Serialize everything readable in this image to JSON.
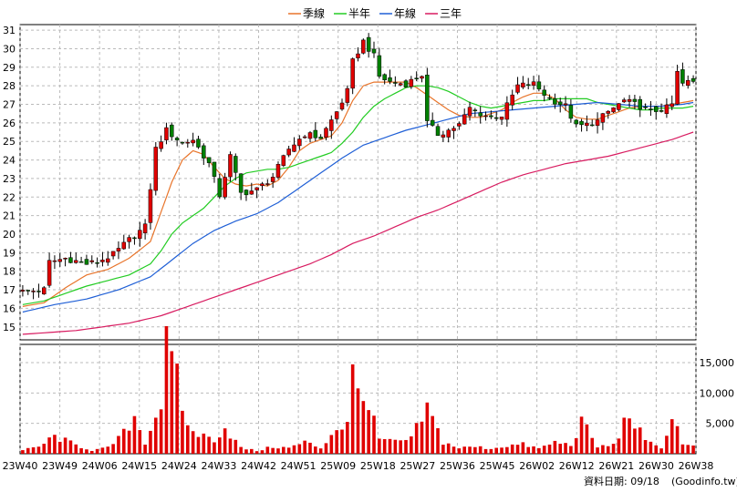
{
  "chart_data": {
    "type": "candlestick",
    "legend": [
      {
        "label": "季線",
        "color": "#e8742a"
      },
      {
        "label": "半年",
        "color": "#22cc22"
      },
      {
        "label": "年線",
        "color": "#1f5fd6"
      },
      {
        "label": "三年",
        "color": "#d81b60"
      }
    ],
    "price_axis": {
      "min": 14.3,
      "max": 31.3,
      "ticks": [
        15,
        16,
        17,
        18,
        19,
        20,
        21,
        22,
        23,
        24,
        25,
        26,
        27,
        28,
        29,
        30,
        31
      ]
    },
    "volume_axis": {
      "max": 18000,
      "ticks": [
        5000,
        10000,
        15000
      ],
      "tick_labels": [
        "5,000",
        "10,000",
        "15,000"
      ]
    },
    "x_labels": [
      "23W40",
      "23W49",
      "24W06",
      "24W15",
      "24W24",
      "24W33",
      "24W42",
      "24W51",
      "25W09",
      "25W18",
      "25W27",
      "25W36",
      "25W45",
      "26W02",
      "26W12",
      "26W21",
      "26W30",
      "26W38"
    ],
    "close_keypoints": [
      [
        0,
        16.9
      ],
      [
        4,
        17.0
      ],
      [
        5,
        18.5
      ],
      [
        8,
        18.7
      ],
      [
        12,
        18.4
      ],
      [
        14,
        18.5
      ],
      [
        17,
        18.9
      ],
      [
        20,
        19.7
      ],
      [
        23,
        20.4
      ],
      [
        25,
        24.6
      ],
      [
        27,
        25.6
      ],
      [
        30,
        24.9
      ],
      [
        32,
        25.1
      ],
      [
        35,
        23.8
      ],
      [
        37,
        22.1
      ],
      [
        39,
        24.2
      ],
      [
        41,
        22.2
      ],
      [
        44,
        22.4
      ],
      [
        47,
        23.1
      ],
      [
        50,
        24.6
      ],
      [
        53,
        25.4
      ],
      [
        56,
        25.2
      ],
      [
        59,
        26.6
      ],
      [
        61,
        27.7
      ],
      [
        62,
        29.3
      ],
      [
        64,
        30.4
      ],
      [
        66,
        29.6
      ],
      [
        67,
        28.5
      ],
      [
        69,
        28.2
      ],
      [
        72,
        28.1
      ],
      [
        75,
        28.6
      ],
      [
        76,
        26.0
      ],
      [
        78,
        25.4
      ],
      [
        80,
        25.6
      ],
      [
        82,
        25.9
      ],
      [
        84,
        26.8
      ],
      [
        86,
        26.5
      ],
      [
        88,
        26.3
      ],
      [
        90,
        26.4
      ],
      [
        93,
        28.0
      ],
      [
        96,
        28.1
      ],
      [
        99,
        27.3
      ],
      [
        102,
        26.9
      ],
      [
        104,
        25.8
      ],
      [
        106,
        25.9
      ],
      [
        108,
        26.1
      ],
      [
        110,
        26.6
      ],
      [
        113,
        27.2
      ],
      [
        116,
        26.9
      ],
      [
        118,
        26.6
      ],
      [
        121,
        26.8
      ],
      [
        122,
        27.0
      ],
      [
        123,
        28.7
      ],
      [
        124,
        28.1
      ],
      [
        125,
        28.2
      ],
      [
        126,
        28.2
      ]
    ],
    "volume_keypoints": [
      [
        0,
        600
      ],
      [
        3,
        1200
      ],
      [
        6,
        3000
      ],
      [
        10,
        1500
      ],
      [
        13,
        600
      ],
      [
        16,
        1000
      ],
      [
        19,
        3500
      ],
      [
        21,
        6500
      ],
      [
        23,
        2000
      ],
      [
        26,
        9000
      ],
      [
        27,
        18000
      ],
      [
        28,
        15500
      ],
      [
        29,
        12500
      ],
      [
        31,
        4500
      ],
      [
        34,
        3000
      ],
      [
        36,
        2500
      ],
      [
        38,
        4500
      ],
      [
        41,
        1000
      ],
      [
        44,
        500
      ],
      [
        47,
        1200
      ],
      [
        50,
        1000
      ],
      [
        53,
        2000
      ],
      [
        56,
        1000
      ],
      [
        59,
        4500
      ],
      [
        61,
        5000
      ],
      [
        62,
        13500
      ],
      [
        63,
        11000
      ],
      [
        64,
        12000
      ],
      [
        65,
        8000
      ],
      [
        67,
        2500
      ],
      [
        70,
        2000
      ],
      [
        73,
        2500
      ],
      [
        76,
        7800
      ],
      [
        79,
        2000
      ],
      [
        82,
        1000
      ],
      [
        85,
        1200
      ],
      [
        88,
        900
      ],
      [
        91,
        1400
      ],
      [
        94,
        1600
      ],
      [
        97,
        900
      ],
      [
        100,
        2000
      ],
      [
        103,
        1500
      ],
      [
        105,
        5500
      ],
      [
        108,
        1200
      ],
      [
        111,
        1500
      ],
      [
        114,
        7000
      ],
      [
        117,
        2000
      ],
      [
        120,
        1200
      ],
      [
        122,
        5500
      ],
      [
        123,
        5800
      ],
      [
        124,
        1500
      ],
      [
        126,
        1200
      ]
    ],
    "ma_keypoints": {
      "q": [
        [
          0,
          16.1
        ],
        [
          4,
          16.3
        ],
        [
          8,
          17.1
        ],
        [
          12,
          17.8
        ],
        [
          16,
          18.1
        ],
        [
          20,
          18.7
        ],
        [
          24,
          19.6
        ],
        [
          26,
          21.2
        ],
        [
          28,
          22.8
        ],
        [
          30,
          24.0
        ],
        [
          32,
          24.5
        ],
        [
          34,
          24.3
        ],
        [
          36,
          23.6
        ],
        [
          38,
          23.0
        ],
        [
          40,
          22.7
        ],
        [
          42,
          22.6
        ],
        [
          44,
          22.7
        ],
        [
          46,
          22.6
        ],
        [
          48,
          22.9
        ],
        [
          50,
          23.6
        ],
        [
          52,
          24.5
        ],
        [
          54,
          24.9
        ],
        [
          56,
          25.1
        ],
        [
          58,
          25.3
        ],
        [
          60,
          26.0
        ],
        [
          62,
          27.2
        ],
        [
          64,
          28.0
        ],
        [
          66,
          28.2
        ],
        [
          68,
          28.2
        ],
        [
          70,
          28.2
        ],
        [
          72,
          28.2
        ],
        [
          74,
          27.9
        ],
        [
          76,
          27.5
        ],
        [
          78,
          27.1
        ],
        [
          80,
          26.7
        ],
        [
          82,
          26.4
        ],
        [
          84,
          26.3
        ],
        [
          86,
          26.3
        ],
        [
          88,
          26.5
        ],
        [
          90,
          26.7
        ],
        [
          92,
          27.1
        ],
        [
          94,
          27.4
        ],
        [
          96,
          27.6
        ],
        [
          98,
          27.6
        ],
        [
          100,
          27.3
        ],
        [
          102,
          26.7
        ],
        [
          104,
          26.3
        ],
        [
          106,
          26.2
        ],
        [
          108,
          26.2
        ],
        [
          110,
          26.4
        ],
        [
          112,
          26.6
        ],
        [
          114,
          26.8
        ],
        [
          116,
          26.9
        ],
        [
          118,
          26.9
        ],
        [
          120,
          26.9
        ],
        [
          122,
          27.0
        ],
        [
          124,
          27.1
        ],
        [
          126,
          27.2
        ]
      ],
      "h": [
        [
          0,
          16.2
        ],
        [
          4,
          16.4
        ],
        [
          8,
          16.8
        ],
        [
          12,
          17.2
        ],
        [
          16,
          17.5
        ],
        [
          20,
          17.8
        ],
        [
          24,
          18.4
        ],
        [
          26,
          19.1
        ],
        [
          28,
          20.0
        ],
        [
          30,
          20.6
        ],
        [
          32,
          21.0
        ],
        [
          34,
          21.4
        ],
        [
          36,
          22.0
        ],
        [
          38,
          22.6
        ],
        [
          40,
          23.0
        ],
        [
          42,
          23.3
        ],
        [
          44,
          23.4
        ],
        [
          46,
          23.5
        ],
        [
          48,
          23.5
        ],
        [
          50,
          23.6
        ],
        [
          52,
          23.8
        ],
        [
          54,
          24.0
        ],
        [
          56,
          24.2
        ],
        [
          58,
          24.4
        ],
        [
          60,
          24.9
        ],
        [
          62,
          25.5
        ],
        [
          64,
          26.3
        ],
        [
          66,
          26.9
        ],
        [
          68,
          27.3
        ],
        [
          70,
          27.6
        ],
        [
          72,
          27.9
        ],
        [
          74,
          28.0
        ],
        [
          76,
          28.0
        ],
        [
          78,
          27.9
        ],
        [
          80,
          27.7
        ],
        [
          82,
          27.4
        ],
        [
          84,
          27.1
        ],
        [
          86,
          26.9
        ],
        [
          88,
          26.8
        ],
        [
          90,
          26.9
        ],
        [
          92,
          27.0
        ],
        [
          94,
          27.1
        ],
        [
          96,
          27.2
        ],
        [
          98,
          27.2
        ],
        [
          100,
          27.3
        ],
        [
          102,
          27.3
        ],
        [
          104,
          27.3
        ],
        [
          106,
          27.3
        ],
        [
          108,
          27.1
        ],
        [
          110,
          27.0
        ],
        [
          112,
          26.9
        ],
        [
          114,
          26.8
        ],
        [
          116,
          26.7
        ],
        [
          118,
          26.7
        ],
        [
          120,
          26.8
        ],
        [
          122,
          26.8
        ],
        [
          124,
          26.8
        ],
        [
          126,
          26.9
        ]
      ],
      "y": [
        [
          0,
          15.8
        ],
        [
          6,
          16.2
        ],
        [
          12,
          16.5
        ],
        [
          18,
          17.0
        ],
        [
          24,
          17.7
        ],
        [
          28,
          18.6
        ],
        [
          32,
          19.5
        ],
        [
          36,
          20.2
        ],
        [
          40,
          20.7
        ],
        [
          44,
          21.1
        ],
        [
          48,
          21.7
        ],
        [
          52,
          22.5
        ],
        [
          56,
          23.3
        ],
        [
          60,
          24.1
        ],
        [
          64,
          24.8
        ],
        [
          68,
          25.2
        ],
        [
          72,
          25.6
        ],
        [
          76,
          25.9
        ],
        [
          80,
          26.2
        ],
        [
          84,
          26.5
        ],
        [
          88,
          26.6
        ],
        [
          92,
          26.7
        ],
        [
          96,
          26.8
        ],
        [
          100,
          26.9
        ],
        [
          104,
          27.0
        ],
        [
          108,
          27.1
        ],
        [
          112,
          27.0
        ],
        [
          116,
          26.9
        ],
        [
          120,
          26.9
        ],
        [
          124,
          27.0
        ],
        [
          126,
          27.1
        ]
      ],
      "t": [
        [
          0,
          14.6
        ],
        [
          10,
          14.8
        ],
        [
          20,
          15.2
        ],
        [
          26,
          15.6
        ],
        [
          30,
          16.0
        ],
        [
          36,
          16.6
        ],
        [
          42,
          17.2
        ],
        [
          48,
          17.8
        ],
        [
          54,
          18.4
        ],
        [
          58,
          18.9
        ],
        [
          62,
          19.5
        ],
        [
          66,
          19.9
        ],
        [
          70,
          20.4
        ],
        [
          74,
          20.9
        ],
        [
          78,
          21.3
        ],
        [
          82,
          21.8
        ],
        [
          86,
          22.3
        ],
        [
          90,
          22.8
        ],
        [
          94,
          23.2
        ],
        [
          98,
          23.5
        ],
        [
          102,
          23.8
        ],
        [
          106,
          24.0
        ],
        [
          110,
          24.2
        ],
        [
          114,
          24.5
        ],
        [
          118,
          24.8
        ],
        [
          122,
          25.1
        ],
        [
          126,
          25.5
        ]
      ]
    },
    "credit": "資料日期: 09/18",
    "site": "(Goodinfo.tw)"
  }
}
